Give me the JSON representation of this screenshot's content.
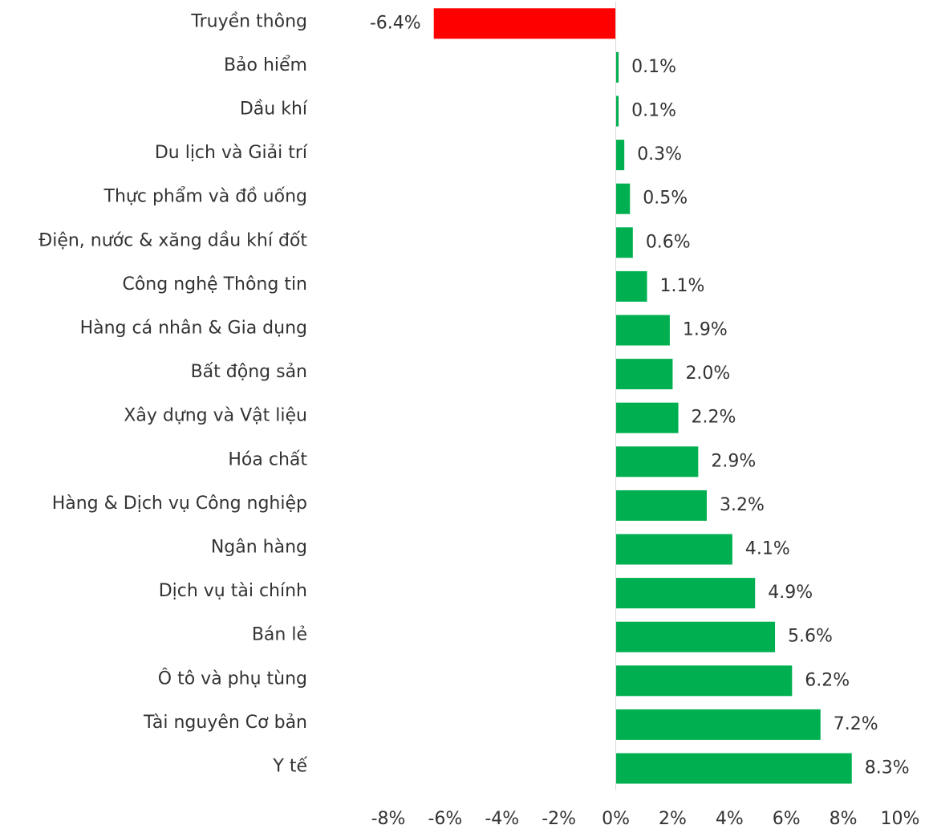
{
  "chart_data": {
    "type": "hbar",
    "categories": [
      "Truyền thông",
      "Bảo hiểm",
      "Dầu khí",
      "Du lịch và Giải trí",
      "Thực phẩm và đồ uống",
      "Điện, nước & xăng dầu khí đốt",
      "Công nghệ Thông tin",
      "Hàng cá nhân & Gia dụng",
      "Bất động sản",
      "Xây dựng và Vật liệu",
      "Hóa chất",
      "Hàng & Dịch vụ Công nghiệp",
      "Ngân hàng",
      "Dịch vụ tài chính",
      "Bán lẻ",
      "Ô tô và phụ tùng",
      "Tài nguyên Cơ bản",
      "Y tế"
    ],
    "values": [
      -6.4,
      0.1,
      0.1,
      0.3,
      0.5,
      0.6,
      1.1,
      1.9,
      2.0,
      2.2,
      2.9,
      3.2,
      4.1,
      4.9,
      5.6,
      6.2,
      7.2,
      8.3
    ],
    "value_labels": [
      "-6.4%",
      "0.1%",
      "0.1%",
      "0.3%",
      "0.5%",
      "0.6%",
      "1.1%",
      "1.9%",
      "2.0%",
      "2.2%",
      "2.9%",
      "3.2%",
      "4.1%",
      "4.9%",
      "5.6%",
      "6.2%",
      "7.2%",
      "8.3%"
    ],
    "colors": {
      "positive": "#00b050",
      "negative": "#ff0000"
    },
    "xlim": [
      -8,
      10
    ],
    "xticks": [
      {
        "value": -8,
        "label": "-8%"
      },
      {
        "value": -6,
        "label": "-6%"
      },
      {
        "value": -4,
        "label": "-4%"
      },
      {
        "value": -2,
        "label": "-2%"
      },
      {
        "value": 0,
        "label": "0%"
      },
      {
        "value": 2,
        "label": "2%"
      },
      {
        "value": 4,
        "label": "4%"
      },
      {
        "value": 6,
        "label": "6%"
      },
      {
        "value": 8,
        "label": "8%"
      },
      {
        "value": 10,
        "label": "10%"
      }
    ],
    "grid": false
  }
}
